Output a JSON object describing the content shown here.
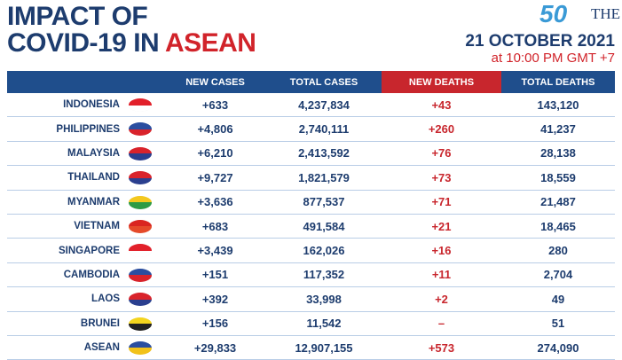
{
  "header": {
    "title_line1": "IMPACT OF",
    "title_line2": "COVID-19 IN",
    "title_highlight": "ASEAN",
    "date": "21 OCTOBER 2021",
    "time": "at 10:00 PM GMT +7",
    "logo": "THE NAT"
  },
  "table": {
    "columns": [
      "",
      "NEW CASES",
      "TOTAL CASES",
      "NEW DEATHS",
      "TOTAL DEATHS"
    ],
    "rows": [
      [
        "INDONESIA",
        "+633",
        "4,237,834",
        "+43",
        "143,120"
      ],
      [
        "PHILIPPINES",
        "+4,806",
        "2,740,111",
        "+260",
        "41,237"
      ],
      [
        "MALAYSIA",
        "+6,210",
        "2,413,592",
        "+76",
        "28,138"
      ],
      [
        "THAILAND",
        "+9,727",
        "1,821,579",
        "+73",
        "18,559"
      ],
      [
        "MYANMAR",
        "+3,636",
        "877,537",
        "+71",
        "21,487"
      ],
      [
        "VIETNAM",
        "+683",
        "491,584",
        "+21",
        "18,465"
      ],
      [
        "SINGAPORE",
        "+3,439",
        "162,026",
        "+16",
        "280"
      ],
      [
        "CAMBODIA",
        "+151",
        "117,352",
        "+11",
        "2,704"
      ],
      [
        "LAOS",
        "+392",
        "33,998",
        "+2",
        "49"
      ],
      [
        "BRUNEI",
        "+156",
        "11,542",
        "–",
        "51"
      ],
      [
        "ASEAN",
        "+29,833",
        "12,907,155",
        "+573",
        "274,090"
      ]
    ]
  }
}
